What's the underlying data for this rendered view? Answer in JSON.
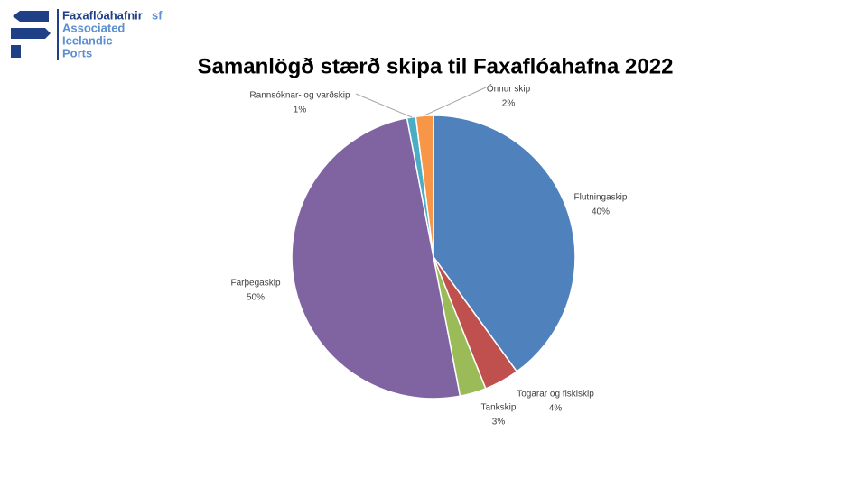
{
  "logo": {
    "name": "Faxaflóahafnir",
    "suffix": "sf",
    "lines": [
      "Associated",
      "Icelandic",
      "Ports"
    ]
  },
  "chart_data": {
    "type": "pie",
    "title": "Samanlögð stærð skipa til Faxaflóahafna 2022",
    "categories": [
      "Flutningaskip",
      "Togarar og fiskiskip",
      "Tankskip",
      "Farþegaskip",
      "Rannsóknar- og varðskip",
      "Önnur skip"
    ],
    "values": [
      40,
      4,
      3,
      50,
      1,
      2
    ],
    "value_labels": [
      "40%",
      "4%",
      "3%",
      "50%",
      "1%",
      "2%"
    ],
    "colors": [
      "#4f81bd",
      "#c0504d",
      "#9bbb59",
      "#8064a2",
      "#4bacc6",
      "#f79646"
    ]
  }
}
